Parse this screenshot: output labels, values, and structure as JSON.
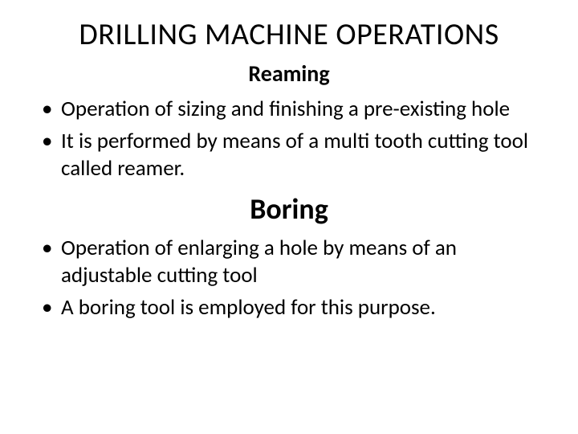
{
  "title": "DRILLING MACHINE OPERATIONS",
  "section1": {
    "heading": "Reaming",
    "bullets": [
      "Operation of sizing and finishing a pre-existing hole",
      " It is performed by means of a multi tooth cutting tool called reamer."
    ]
  },
  "section2": {
    "heading": "Boring",
    "bullets": [
      "Operation of enlarging a hole by means of an adjustable cutting tool",
      "A boring tool is employed for this purpose."
    ]
  },
  "colors": {
    "background": "#ffffff",
    "text": "#000000"
  },
  "typography": {
    "title_fontsize": 38,
    "subtitle1_fontsize": 28,
    "subtitle2_fontsize": 36,
    "body_fontsize": 27,
    "font_family": "Calibri"
  }
}
